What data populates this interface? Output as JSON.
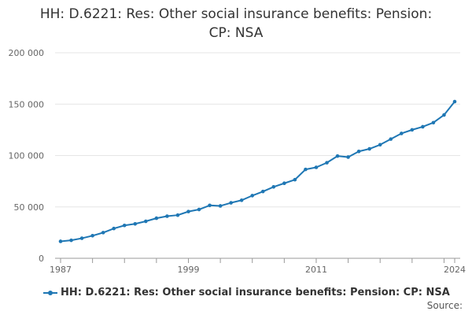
{
  "title_line1": "HH: D.6221: Res: Other social insurance benefits: Pension:",
  "title_line2": "CP: NSA",
  "source_label": "Source:",
  "chart_data": {
    "type": "line",
    "title": "HH: D.6221: Res: Other social insurance benefits: Pension: CP: NSA",
    "xlabel": "",
    "ylabel": "",
    "ylim": [
      0,
      200000
    ],
    "yticks": [
      0,
      50000,
      100000,
      150000,
      200000
    ],
    "ytick_labels": [
      "0",
      "50 000",
      "100 000",
      "150 000",
      "200 000"
    ],
    "xlim": [
      1987,
      2024
    ],
    "xticks": [
      1987,
      1999,
      2011,
      2024
    ],
    "xtick_labels": [
      "1987",
      "1999",
      "2011",
      "2024"
    ],
    "color": "#1f77b4",
    "legend": "bottom-left",
    "series": [
      {
        "name": "HH: D.6221: Res: Other social insurance benefits: Pension: CP: NSA",
        "x": [
          1987,
          1988,
          1989,
          1990,
          1991,
          1992,
          1993,
          1994,
          1995,
          1996,
          1997,
          1998,
          1999,
          2000,
          2001,
          2002,
          2003,
          2004,
          2005,
          2006,
          2007,
          2008,
          2009,
          2010,
          2011,
          2012,
          2013,
          2014,
          2015,
          2016,
          2017,
          2018,
          2019,
          2020,
          2021,
          2022,
          2023,
          2024
        ],
        "values": [
          16500,
          17500,
          19500,
          22000,
          25000,
          29000,
          32000,
          33500,
          36000,
          39000,
          41000,
          42000,
          45500,
          47500,
          51500,
          51000,
          54000,
          56500,
          61000,
          65000,
          69500,
          73000,
          76500,
          86500,
          88500,
          93000,
          99500,
          98500,
          104000,
          106500,
          110500,
          116000,
          121500,
          125000,
          128000,
          132000,
          139500,
          152500
        ]
      }
    ]
  }
}
